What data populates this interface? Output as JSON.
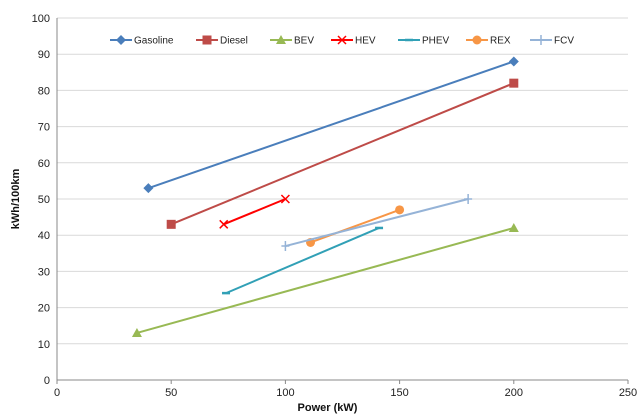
{
  "chart_data": {
    "type": "line",
    "title": "",
    "xlabel": "Power (kW)",
    "ylabel": "kWh/100km",
    "xlim": [
      0,
      250
    ],
    "ylim": [
      0,
      100
    ],
    "xticks": [
      0,
      50,
      100,
      150,
      200,
      250
    ],
    "yticks": [
      0,
      10,
      20,
      30,
      40,
      50,
      60,
      70,
      80,
      90,
      100
    ],
    "grid": "horizontal",
    "legend_position": "top",
    "series": [
      {
        "name": "Gasoline",
        "color": "#4a7ebb",
        "marker": "diamond",
        "points": [
          [
            40,
            53
          ],
          [
            200,
            88
          ]
        ]
      },
      {
        "name": "Diesel",
        "color": "#be4b48",
        "marker": "square",
        "points": [
          [
            50,
            43
          ],
          [
            200,
            82
          ]
        ]
      },
      {
        "name": "BEV",
        "color": "#98b954",
        "marker": "triangle",
        "points": [
          [
            35,
            13
          ],
          [
            200,
            42
          ]
        ]
      },
      {
        "name": "HEV",
        "color": "#ff0000",
        "marker": "x",
        "points": [
          [
            73,
            43
          ],
          [
            100,
            50
          ]
        ]
      },
      {
        "name": "PHEV",
        "color": "#31a0b6",
        "marker": "dash",
        "points": [
          [
            74,
            24
          ],
          [
            141,
            42
          ]
        ]
      },
      {
        "name": "REX",
        "color": "#f79646",
        "marker": "circle",
        "points": [
          [
            111,
            38
          ],
          [
            150,
            47
          ]
        ]
      },
      {
        "name": "FCV",
        "color": "#95b3d7",
        "marker": "plus",
        "points": [
          [
            100,
            37
          ],
          [
            180,
            50
          ]
        ]
      }
    ]
  }
}
